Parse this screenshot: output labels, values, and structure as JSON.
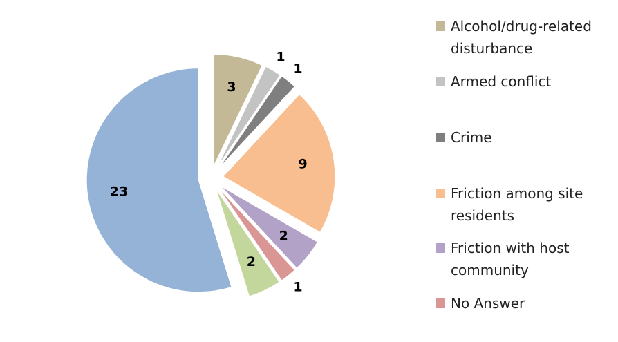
{
  "chart_data": {
    "type": "pie",
    "categories": [
      "Alcohol/drug-related disturbance",
      "Armed conflict",
      "Crime",
      "Friction among site residents",
      "Friction with host community",
      "No Answer",
      null,
      null
    ],
    "values": [
      3,
      1,
      1,
      9,
      2,
      1,
      2,
      23
    ],
    "colors": [
      "#c4b996",
      "#c3c3c3",
      "#7f7f7f",
      "#f9be8f",
      "#b3a2c7",
      "#d99694",
      "#c3d69b",
      "#95b3d7"
    ],
    "exploded": true
  }
}
